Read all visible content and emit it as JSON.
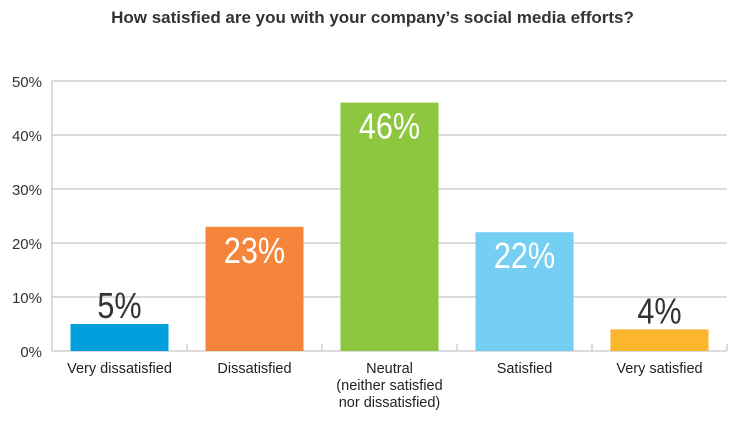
{
  "chart_data": {
    "type": "bar",
    "title": "How satisfied are you with your company’s social media efforts?",
    "categories": [
      [
        "Very dissatisfied"
      ],
      [
        "Dissatisfied"
      ],
      [
        "Neutral",
        "(neither satisfied",
        "nor dissatisfied)"
      ],
      [
        "Satisfied"
      ],
      [
        "Very satisfied"
      ]
    ],
    "values": [
      5,
      23,
      46,
      22,
      4
    ],
    "data_labels": [
      "5%",
      "23%",
      "46%",
      "22%",
      "4%"
    ],
    "colors": [
      "#00a0dc",
      "#f5853a",
      "#8dc63f",
      "#75cff2",
      "#fbb62e"
    ],
    "ylim": [
      0,
      50
    ],
    "yticks": [
      0,
      10,
      20,
      30,
      40,
      50
    ],
    "ytick_labels": [
      "0%",
      "10%",
      "20%",
      "30%",
      "40%",
      "50%"
    ],
    "xlabel": "",
    "ylabel": "",
    "grid": true,
    "legend": "none"
  }
}
